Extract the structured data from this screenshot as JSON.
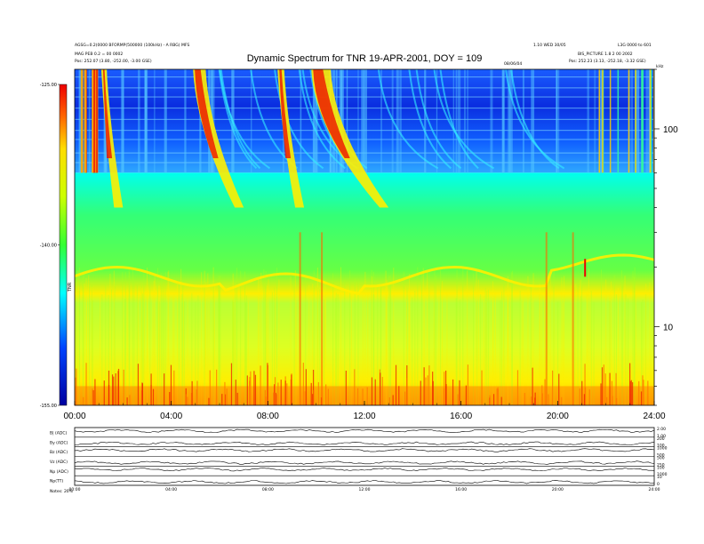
{
  "chart_data": {
    "type": "heatmap",
    "title": "Dynamic Spectrum for TNR 19-APR-2001, DOY = 109",
    "header_left": {
      "line1": "AGSG=0.2(0000 BFORMP(500000 (100kHz) - A RBG) MFS",
      "line2": "MAG PEB 0.2 = 00 0002",
      "line3": "Pos:   252.07 (3.80, -252.00, -3.00 GSE)"
    },
    "header_right": {
      "line1": "1.10 WED 30/05",
      "line2": "L3G 0000 to 601",
      "line3": "BIS_PICTURE 1.8 2 00  2002",
      "line4": "Pos:   252.23 (3.13, -252.18, -3.32 GSE)"
    },
    "center_note": "08/06/04",
    "x_ticks": [
      "00:00",
      "04:00",
      "08:00",
      "12:00",
      "16:00",
      "20:00",
      "24:00"
    ],
    "x_range_hours": [
      0,
      24
    ],
    "y_label": "kHz",
    "y_scale": "log",
    "y_range_khz": [
      4,
      200
    ],
    "y_ticks": [
      "10",
      "100"
    ],
    "colorbar": {
      "label": "TNR",
      "ticks": [
        "-125.00",
        "-140.00",
        "-155.00"
      ],
      "range": [
        -155,
        -125
      ]
    },
    "bursts": [
      {
        "start_h": 4.9,
        "end_h": 7.0,
        "kind": "type III"
      },
      {
        "start_h": 8.4,
        "end_h": 9.5,
        "kind": "type III"
      },
      {
        "start_h": 9.8,
        "end_h": 13.0,
        "kind": "type III"
      },
      {
        "start_h": 1.1,
        "end_h": 2.0,
        "kind": "type III"
      }
    ],
    "panels": [
      {
        "label": "B| (ADC)",
        "right_ticks": [
          "2.00",
          "1.00"
        ]
      },
      {
        "label": "By (ADC)",
        "right_ticks": [
          "200",
          "100"
        ]
      },
      {
        "label": "Bz (ADC)",
        "right_ticks": [
          "1000",
          "500"
        ]
      },
      {
        "label": "Vz (ADC)",
        "right_ticks": [
          "500",
          "250"
        ]
      },
      {
        "label": "Np (ADC)",
        "right_ticks": [
          "100",
          "1000"
        ]
      },
      {
        "label": "Np(TT)",
        "right_ticks": [
          "10",
          "0"
        ]
      }
    ],
    "bottom_ticks": [
      "00:00",
      "04:00",
      "08:00",
      "12:00",
      "16:00",
      "20:00",
      "24:00"
    ],
    "bottom_note": "Notes:  20%"
  }
}
